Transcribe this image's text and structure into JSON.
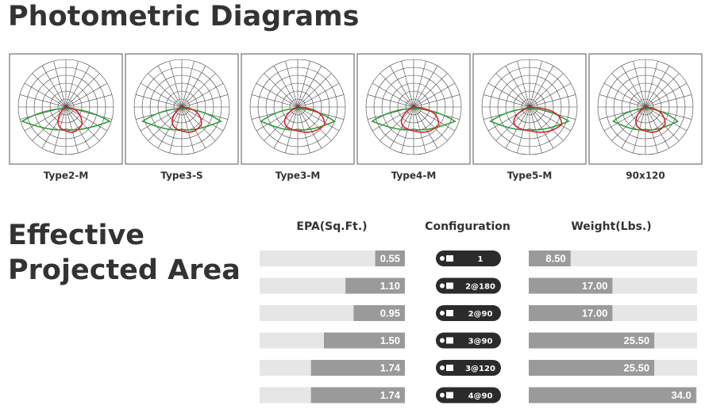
{
  "photometric": {
    "title": "Photometric Diagrams",
    "diagrams": [
      "Type2-M",
      "Type3-S",
      "Type3-M",
      "Type4-M",
      "Type5-M",
      "90x120"
    ]
  },
  "epa_section": {
    "title_lines": [
      "Effective",
      "Projected Area"
    ],
    "epa": {
      "header": "EPA(Sq.Ft.)",
      "values": [
        0.55,
        1.1,
        0.95,
        1.5,
        1.74,
        1.74
      ],
      "value_labels": [
        "0.55",
        "1.10",
        "0.95",
        "1.50",
        "1.74",
        "1.74"
      ]
    },
    "configuration": {
      "header": "Configuration",
      "labels": [
        "1",
        "2@180",
        "2@90",
        "3@90",
        "3@120",
        "4@90"
      ]
    },
    "weight": {
      "header": "Weight(Lbs.)",
      "values": [
        8.5,
        17,
        17,
        25.5,
        25.5,
        34.0
      ],
      "value_labels": [
        "8.50",
        "17.00",
        "17.00",
        "25.50",
        "25.50",
        "34.0"
      ]
    }
  }
}
